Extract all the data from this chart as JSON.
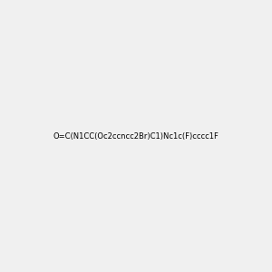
{
  "smiles": "O=C(N1CC(Oc2ccncc2Br)C1)Nc1c(F)cccc1F",
  "image_size": 300,
  "background_color": "#f0f0f0",
  "title": ""
}
